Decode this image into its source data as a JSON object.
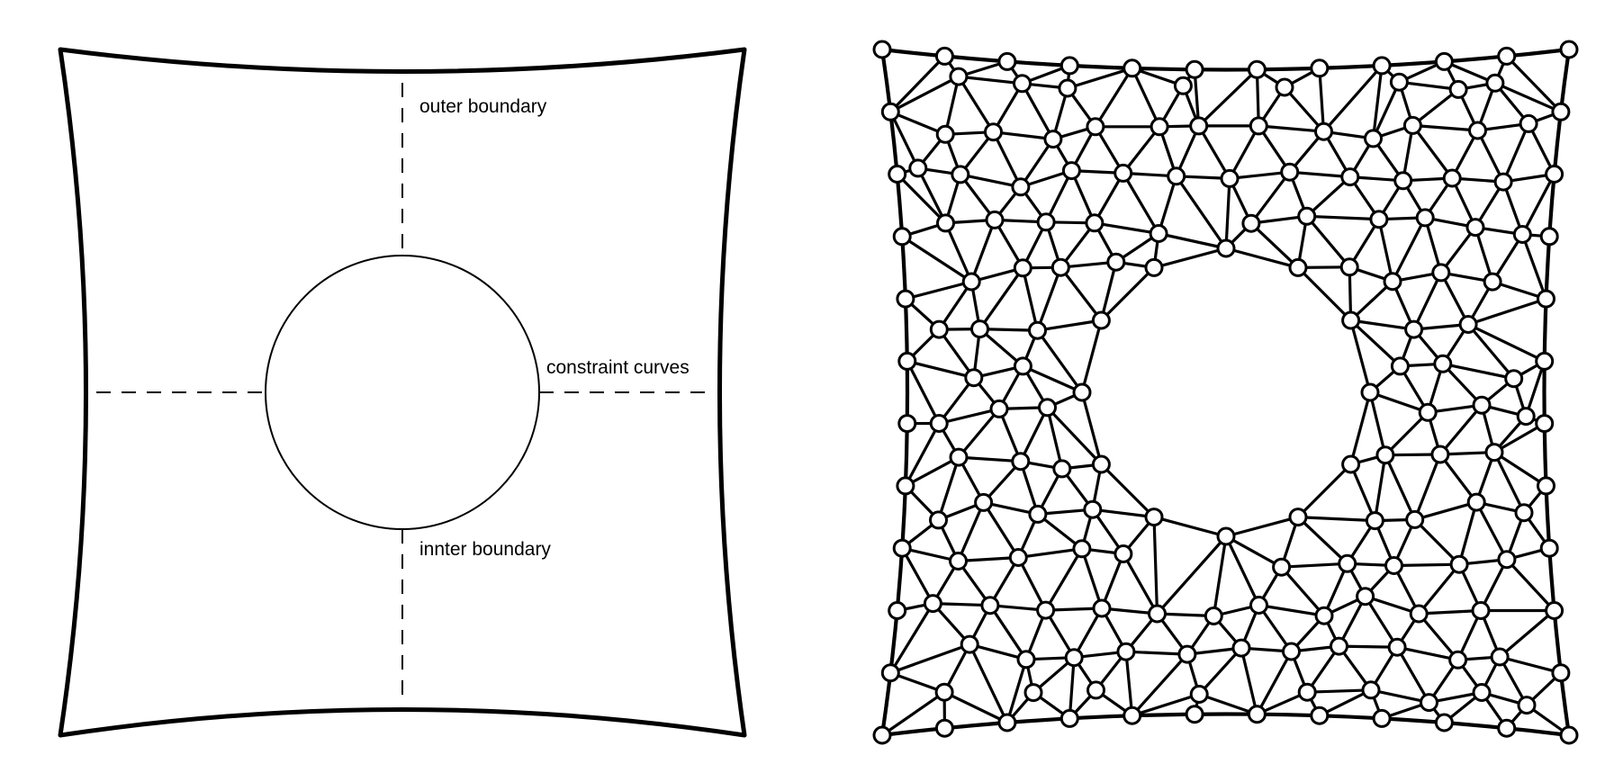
{
  "labels": {
    "outer_boundary": "outer boundary",
    "constraint_curves": "constraint curves",
    "inner_boundary": "innter boundary"
  },
  "colors": {
    "stroke": "#000000",
    "background": "#ffffff",
    "node_fill": "#ffffff"
  },
  "panels": [
    {
      "name": "domain-sketch",
      "elements": [
        "outer boundary",
        "inner circular boundary",
        "dashed constraint curves"
      ]
    },
    {
      "name": "triangulated-mesh",
      "elements": [
        "curved square boundary",
        "circular hole",
        "triangle edges",
        "vertex nodes"
      ]
    }
  ]
}
